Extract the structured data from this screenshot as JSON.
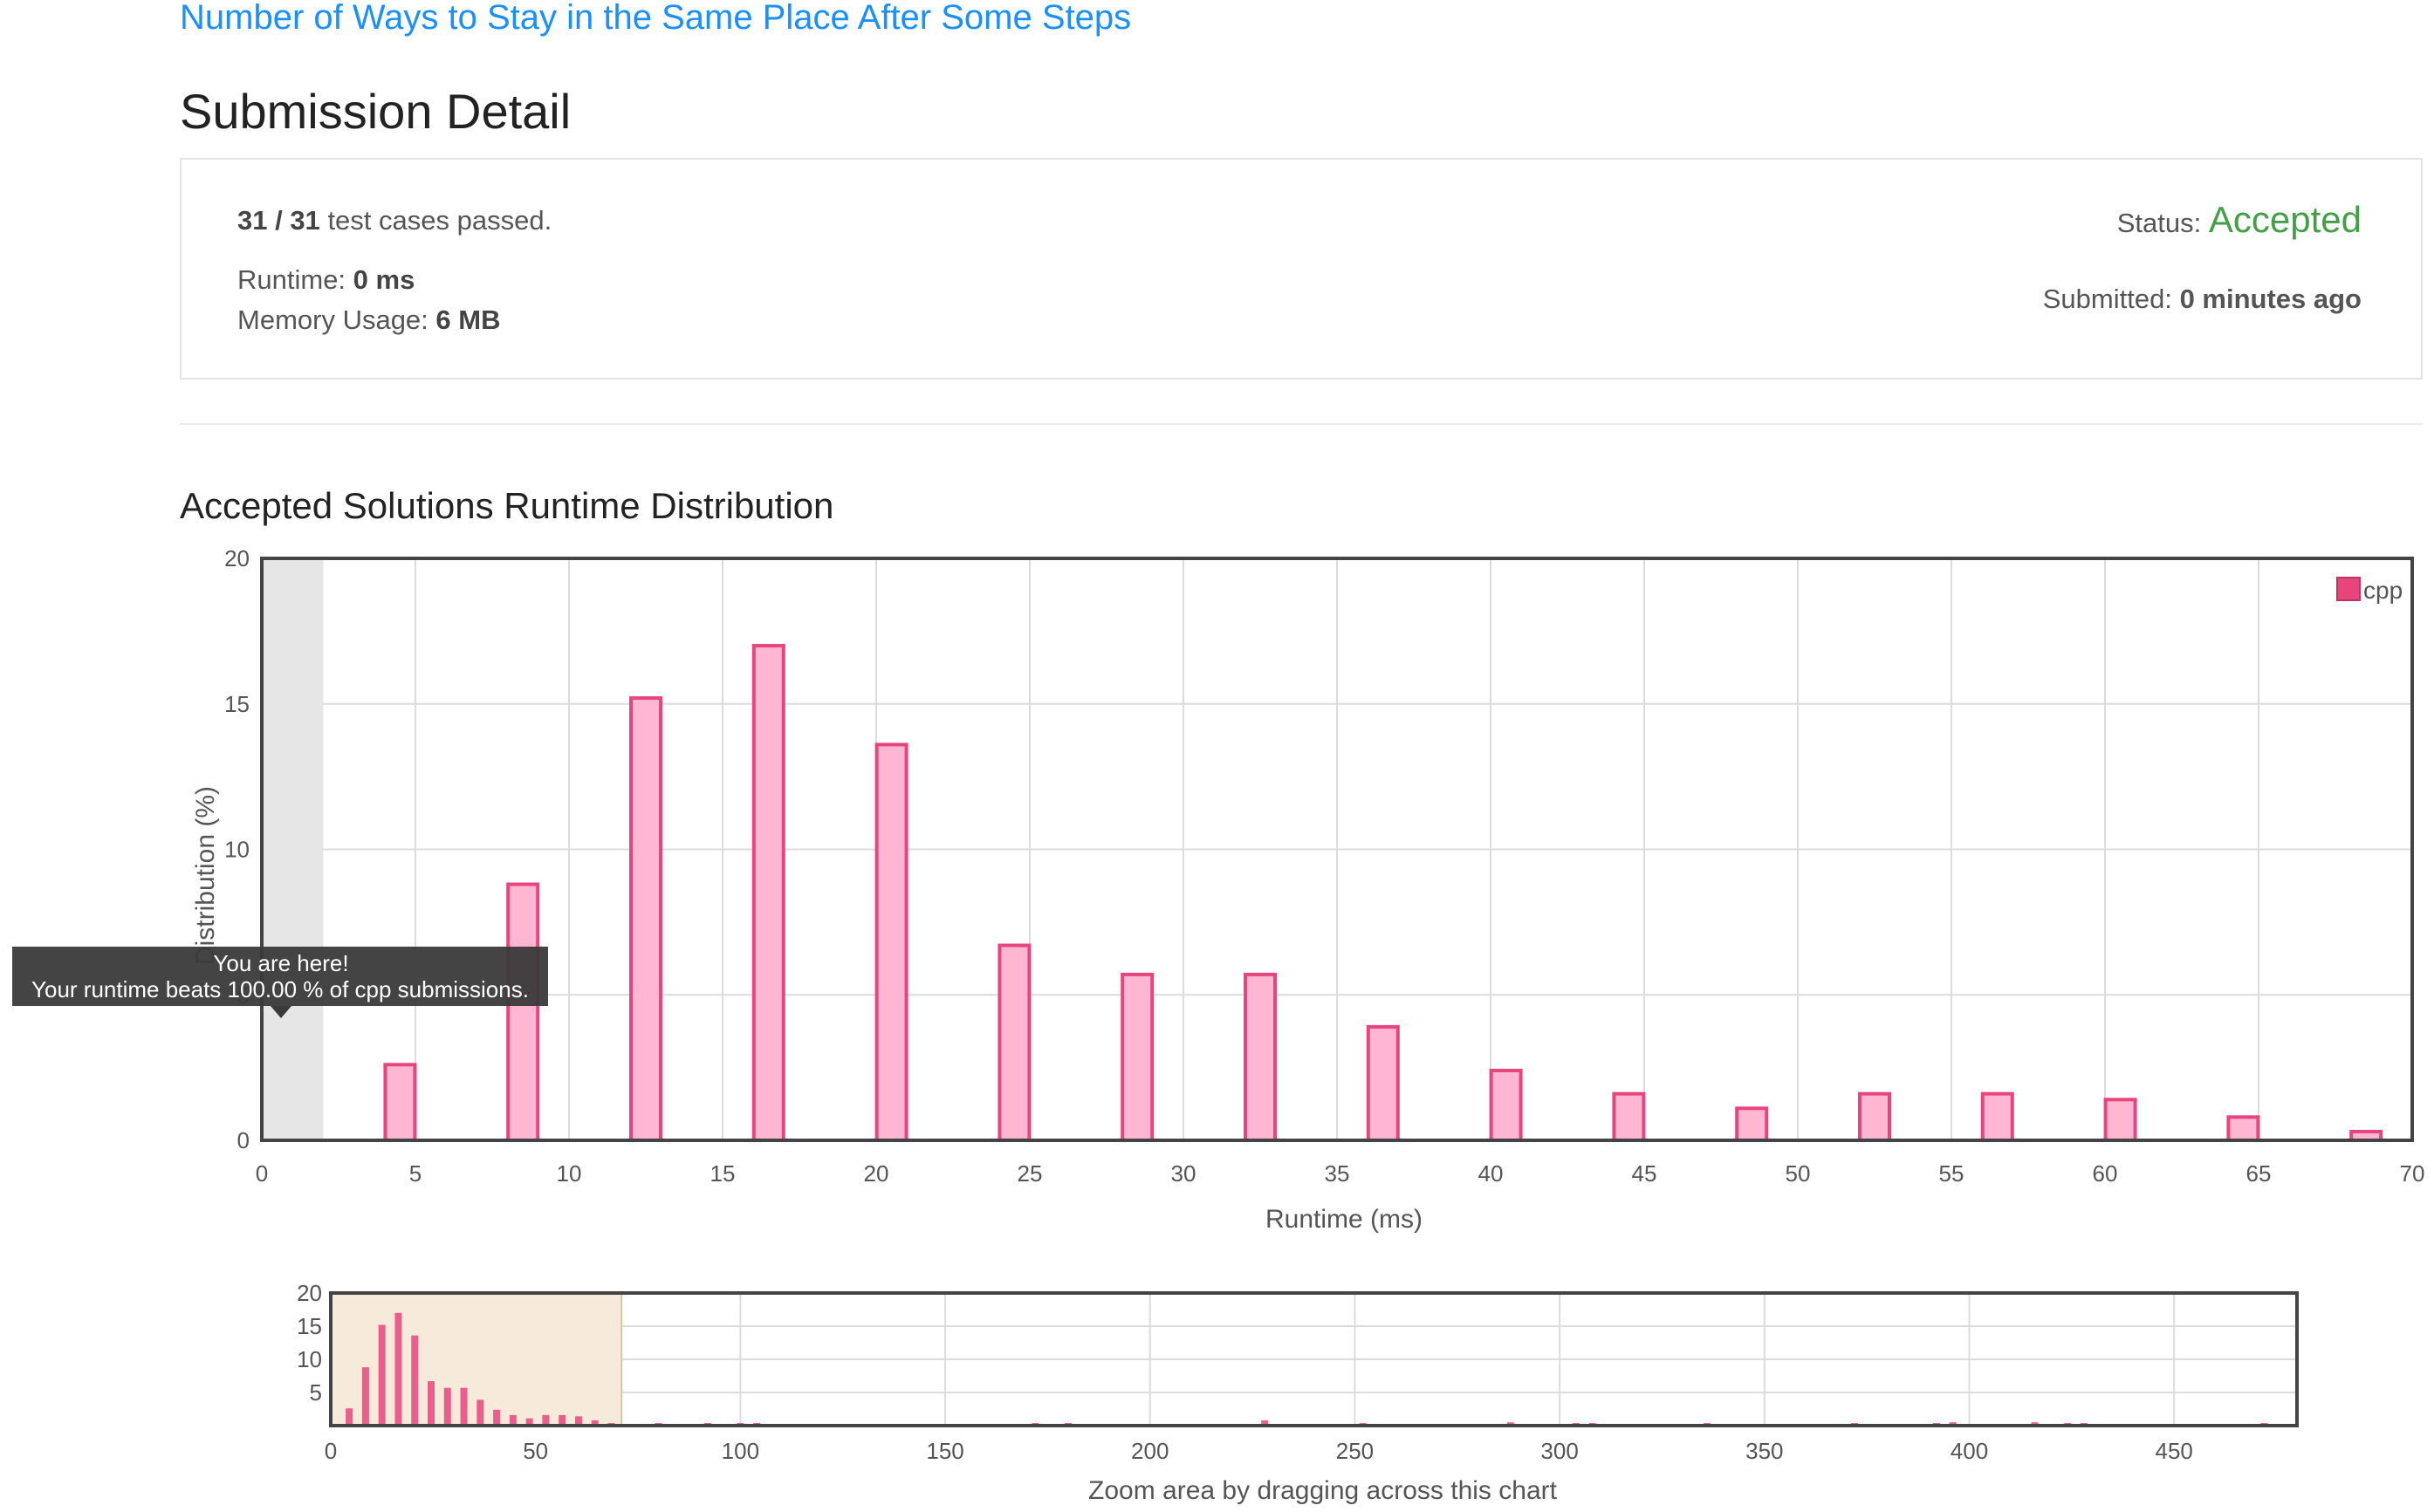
{
  "header": {
    "problem_title": "Number of Ways to Stay in the Same Place After Some Steps",
    "page_title": "Submission Detail"
  },
  "submission": {
    "tests_passed": "31 / 31",
    "tests_suffix": "test cases passed.",
    "runtime_label": "Runtime:",
    "runtime_value": "0 ms",
    "memory_label": "Memory Usage:",
    "memory_value": "6 MB",
    "status_label": "Status:",
    "status_value": "Accepted",
    "submitted_label": "Submitted:",
    "submitted_value": "0 minutes ago"
  },
  "distribution": {
    "title": "Accepted Solutions Runtime Distribution",
    "tooltip_line1": "You are here!",
    "tooltip_line2": "Your runtime beats 100.00 % of cpp submissions.",
    "navigator_label": "Zoom area by dragging across this chart"
  },
  "colors": {
    "accent_link": "#1a90ff",
    "accepted_green": "#43a047",
    "bar_fill": "#ffb6d0",
    "bar_stroke": "#e8457c",
    "navigator_bar": "#e8457c",
    "selection_fill": "#f6eadb"
  },
  "chart_data": [
    {
      "type": "bar",
      "title": "",
      "xlabel": "Runtime (ms)",
      "ylabel": "Distribution (%)",
      "xlim": [
        0,
        70
      ],
      "ylim": [
        0,
        20
      ],
      "x_ticks": [
        0,
        5,
        10,
        15,
        20,
        25,
        30,
        35,
        40,
        45,
        50,
        55,
        60,
        65,
        70
      ],
      "y_ticks": [
        0,
        5,
        10,
        15,
        20
      ],
      "grid": true,
      "legend_position": "top-right",
      "series": [
        {
          "name": "cpp",
          "x": [
            4.5,
            8.5,
            12.5,
            16.5,
            20.5,
            24.5,
            28.5,
            32.5,
            36.5,
            40.5,
            44.5,
            48.5,
            52.5,
            56.5,
            60.5,
            64.5,
            68.5
          ],
          "values": [
            2.6,
            8.8,
            15.2,
            17.0,
            13.6,
            6.7,
            5.7,
            5.7,
            3.9,
            2.4,
            1.6,
            1.1,
            1.6,
            1.6,
            1.4,
            0.8,
            0.3
          ]
        }
      ],
      "highlight_range": [
        0,
        2
      ]
    },
    {
      "type": "bar",
      "title": "",
      "xlabel": "",
      "ylabel": "",
      "xlim": [
        0,
        480
      ],
      "ylim": [
        0,
        20
      ],
      "x_ticks": [
        0,
        50,
        100,
        150,
        200,
        250,
        300,
        350,
        400,
        450
      ],
      "y_ticks": [
        5,
        10,
        15,
        20
      ],
      "grid": true,
      "selection_range": [
        0,
        71
      ],
      "series": [
        {
          "name": "cpp",
          "x": [
            4.5,
            8.5,
            12.5,
            16.5,
            20.5,
            24.5,
            28.5,
            32.5,
            36.5,
            40.5,
            44.5,
            48.5,
            52.5,
            56.5,
            60.5,
            64.5,
            68.5,
            80,
            92,
            100,
            104,
            172,
            180,
            228,
            252,
            288,
            304,
            308,
            336,
            372,
            392,
            396,
            416,
            424,
            428,
            472
          ],
          "values": [
            2.6,
            8.8,
            15.2,
            17.0,
            13.6,
            6.7,
            5.7,
            5.7,
            3.9,
            2.4,
            1.6,
            1.1,
            1.6,
            1.6,
            1.4,
            0.8,
            0.3,
            0.3,
            0.3,
            0.3,
            0.3,
            0.3,
            0.3,
            0.8,
            0.3,
            0.5,
            0.3,
            0.3,
            0.3,
            0.3,
            0.3,
            0.5,
            0.5,
            0.3,
            0.3,
            0.3
          ]
        }
      ]
    }
  ]
}
